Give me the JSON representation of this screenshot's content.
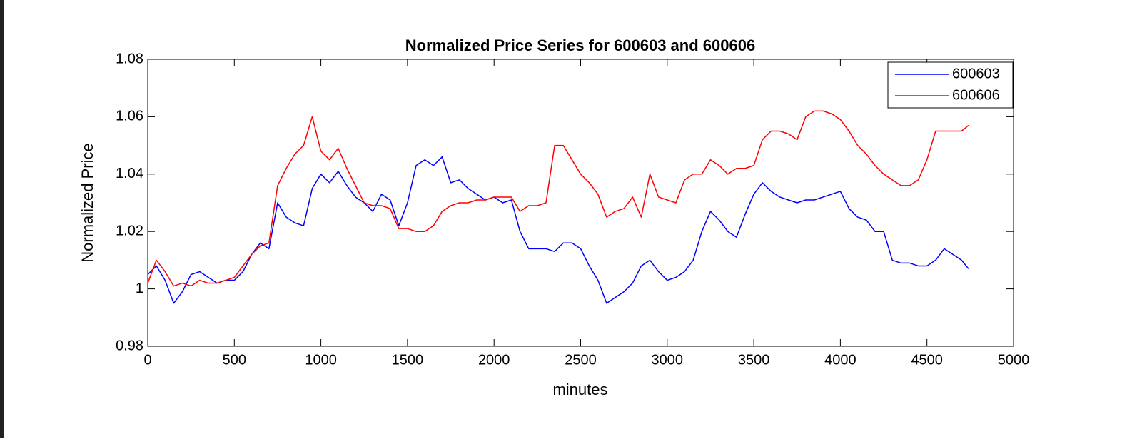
{
  "chart_data": {
    "type": "line",
    "title": "Normalized Price Series for 600603 and 600606",
    "xlabel": "minutes",
    "ylabel": "Normalized Price",
    "x": [
      0,
      50,
      100,
      150,
      200,
      250,
      300,
      350,
      400,
      450,
      500,
      550,
      600,
      650,
      700,
      750,
      800,
      850,
      900,
      950,
      1000,
      1050,
      1100,
      1150,
      1200,
      1250,
      1300,
      1350,
      1400,
      1450,
      1500,
      1550,
      1600,
      1650,
      1700,
      1750,
      1800,
      1850,
      1900,
      1950,
      2000,
      2050,
      2100,
      2150,
      2200,
      2250,
      2300,
      2350,
      2400,
      2450,
      2500,
      2550,
      2600,
      2650,
      2700,
      2750,
      2800,
      2850,
      2900,
      2950,
      3000,
      3050,
      3100,
      3150,
      3200,
      3250,
      3300,
      3350,
      3400,
      3450,
      3500,
      3550,
      3600,
      3650,
      3700,
      3750,
      3800,
      3850,
      3900,
      3950,
      4000,
      4050,
      4100,
      4150,
      4200,
      4250,
      4300,
      4350,
      4400,
      4450,
      4500,
      4550,
      4600,
      4650,
      4700,
      4740
    ],
    "series": [
      {
        "name": "600603",
        "color": "#0000ff",
        "values": [
          1.005,
          1.008,
          1.003,
          0.995,
          0.999,
          1.005,
          1.006,
          1.004,
          1.002,
          1.003,
          1.003,
          1.006,
          1.012,
          1.016,
          1.014,
          1.03,
          1.025,
          1.023,
          1.022,
          1.035,
          1.04,
          1.037,
          1.041,
          1.036,
          1.032,
          1.03,
          1.027,
          1.033,
          1.031,
          1.022,
          1.03,
          1.043,
          1.045,
          1.043,
          1.046,
          1.037,
          1.038,
          1.035,
          1.033,
          1.031,
          1.032,
          1.03,
          1.031,
          1.02,
          1.014,
          1.014,
          1.014,
          1.013,
          1.016,
          1.016,
          1.014,
          1.008,
          1.003,
          0.995,
          0.997,
          0.999,
          1.002,
          1.008,
          1.01,
          1.006,
          1.003,
          1.004,
          1.006,
          1.01,
          1.02,
          1.027,
          1.024,
          1.02,
          1.018,
          1.026,
          1.033,
          1.037,
          1.034,
          1.032,
          1.031,
          1.03,
          1.031,
          1.031,
          1.032,
          1.033,
          1.034,
          1.028,
          1.025,
          1.024,
          1.02,
          1.02,
          1.01,
          1.009,
          1.009,
          1.008,
          1.008,
          1.01,
          1.014,
          1.012,
          1.01,
          1.007
        ]
      },
      {
        "name": "600606",
        "color": "#ff0000",
        "values": [
          1.002,
          1.01,
          1.006,
          1.001,
          1.002,
          1.001,
          1.003,
          1.002,
          1.002,
          1.003,
          1.004,
          1.008,
          1.012,
          1.015,
          1.016,
          1.036,
          1.042,
          1.047,
          1.05,
          1.06,
          1.048,
          1.045,
          1.049,
          1.042,
          1.036,
          1.03,
          1.029,
          1.029,
          1.028,
          1.021,
          1.021,
          1.02,
          1.02,
          1.022,
          1.027,
          1.029,
          1.03,
          1.03,
          1.031,
          1.031,
          1.032,
          1.032,
          1.032,
          1.027,
          1.029,
          1.029,
          1.03,
          1.05,
          1.05,
          1.045,
          1.04,
          1.037,
          1.033,
          1.025,
          1.027,
          1.028,
          1.032,
          1.025,
          1.04,
          1.032,
          1.031,
          1.03,
          1.038,
          1.04,
          1.04,
          1.045,
          1.043,
          1.04,
          1.042,
          1.042,
          1.043,
          1.052,
          1.055,
          1.055,
          1.054,
          1.052,
          1.06,
          1.062,
          1.062,
          1.061,
          1.059,
          1.055,
          1.05,
          1.047,
          1.043,
          1.04,
          1.038,
          1.036,
          1.036,
          1.038,
          1.045,
          1.055,
          1.055,
          1.055,
          1.055,
          1.057
        ]
      }
    ],
    "xlim": [
      0,
      5000
    ],
    "xticks": [
      0,
      500,
      1000,
      1500,
      2000,
      2500,
      3000,
      3500,
      4000,
      4500,
      5000
    ],
    "ylim": [
      0.98,
      1.08
    ],
    "yticks": [
      0.98,
      1,
      1.02,
      1.04,
      1.06,
      1.08
    ],
    "grid": false,
    "legend": "northeast"
  }
}
